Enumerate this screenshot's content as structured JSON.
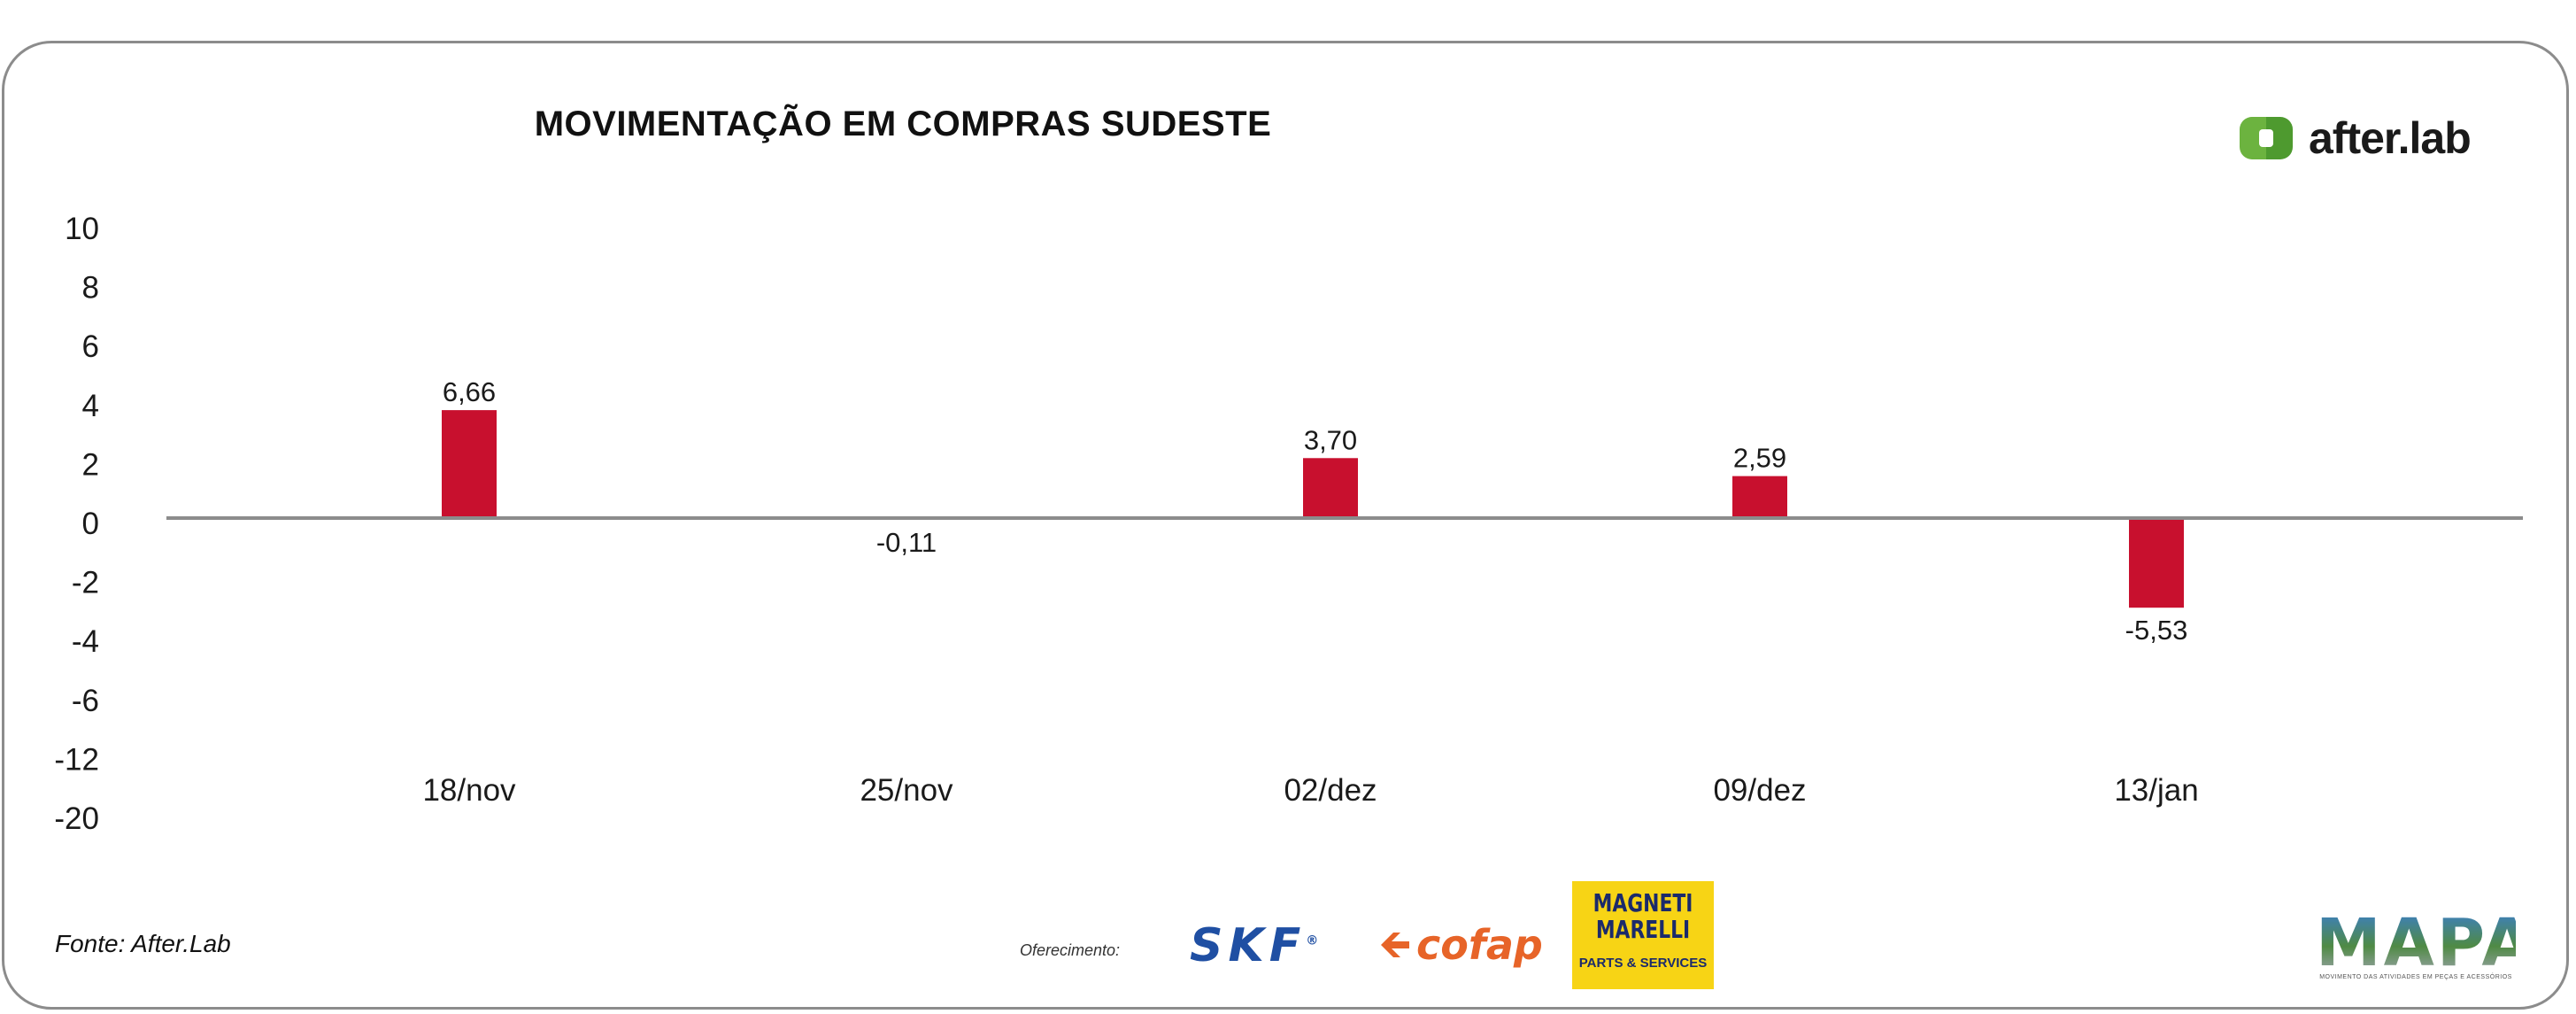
{
  "title": "MOVIMENTAÇÃO EM COMPRAS SUDESTE",
  "logo": {
    "text": "after.lab",
    "icon": "afterlab-logo-icon",
    "color": "#6cb33f"
  },
  "source": "Fonte: After.Lab",
  "sponsors": {
    "label": "Oferecimento:",
    "skf": "SKF",
    "skf_mark": "®",
    "cofap": "cofap",
    "magneti_line1": "MAGNETI",
    "magneti_line2": "MARELLI",
    "magneti_line3": "PARTS & SERVICES"
  },
  "mapa": {
    "title": "MAPA",
    "subtitle": "MOVIMENTO DAS ATIVIDADES EM PEÇAS E ACESSÓRIOS"
  },
  "colors": {
    "bar": "#c8102e",
    "axis": "#8c8c8c",
    "frame": "#8c8c8c"
  },
  "chart_data": {
    "type": "bar",
    "title": "MOVIMENTAÇÃO EM COMPRAS SUDESTE",
    "xlabel": "",
    "ylabel": "",
    "categories": [
      "18/nov",
      "25/nov",
      "02/dez",
      "09/dez",
      "13/jan"
    ],
    "values": [
      6.66,
      -0.11,
      3.7,
      2.59,
      -5.53
    ],
    "value_labels": [
      "6,66",
      "-0,11",
      "3,70",
      "2,59",
      "-5,53"
    ],
    "y_tick_labels": [
      "10",
      "8",
      "6",
      "4",
      "2",
      "0",
      "-2",
      "-4",
      "-6",
      "-12",
      "-20"
    ],
    "grid": false,
    "legend": "none"
  }
}
